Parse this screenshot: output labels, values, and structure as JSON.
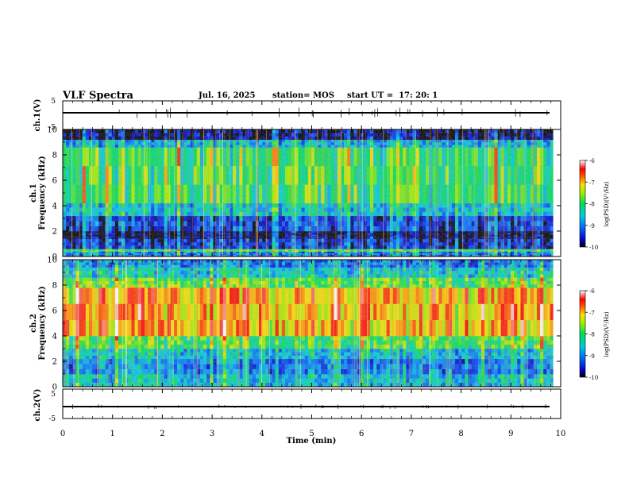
{
  "header": {
    "title": "VLF Spectra",
    "date": "Jul. 16, 2025",
    "station": "station= MOS",
    "start": "start UT =  17: 20: 1"
  },
  "chart_data": [
    {
      "type": "line",
      "name": "ch1-voltage",
      "ylabel": "ch.1(V)",
      "ylim": [
        -5,
        5
      ],
      "yticks": [
        "5",
        "-5"
      ],
      "trace_level": 0
    },
    {
      "type": "heatmap",
      "name": "ch1-spectrogram",
      "ylabel_top": "ch.1",
      "ylabel": "Frequency (kHz)",
      "ylim": [
        0,
        10
      ],
      "yticks": [
        "0",
        "2",
        "4",
        "6",
        "8",
        "10"
      ],
      "xlim_min": [
        0,
        9.85
      ],
      "color_range_log_psd": [
        -10,
        -6
      ],
      "colorbar_ticks": [
        "-6",
        "-7",
        "-8",
        "-9",
        "-10"
      ],
      "colorbar_label": "log(PSD)(V²/Hz)",
      "bands_khz": [
        {
          "from": 0,
          "to": 0.4,
          "level": -9.0
        },
        {
          "from": 0.4,
          "to": 0.6,
          "level": -8.0
        },
        {
          "from": 0.6,
          "to": 1.4,
          "level": -9.5
        },
        {
          "from": 1.4,
          "to": 1.6,
          "level": -9.9
        },
        {
          "from": 1.6,
          "to": 2.0,
          "level": -10.0
        },
        {
          "from": 2.0,
          "to": 3.2,
          "level": -9.4
        },
        {
          "from": 3.2,
          "to": 4.2,
          "level": -8.6
        },
        {
          "from": 4.2,
          "to": 8.6,
          "level": -8.0
        },
        {
          "from": 8.6,
          "to": 9.2,
          "level": -8.7
        },
        {
          "from": 9.2,
          "to": 10.0,
          "level": -9.9
        }
      ]
    },
    {
      "type": "heatmap",
      "name": "ch2-spectrogram",
      "ylabel_top": "ch.2",
      "ylabel": "Frequency (kHz)",
      "ylim": [
        0,
        10
      ],
      "yticks": [
        "0",
        "2",
        "4",
        "6",
        "8",
        "10"
      ],
      "xlim_min": [
        0,
        9.85
      ],
      "color_range_log_psd": [
        -10,
        -6
      ],
      "colorbar_ticks": [
        "-6",
        "-7",
        "-8",
        "-9",
        "-10"
      ],
      "colorbar_label": "log(PSD)(V²/Hz)",
      "bands_khz": [
        {
          "from": 0,
          "to": 1.0,
          "level": -8.6
        },
        {
          "from": 1.0,
          "to": 2.2,
          "level": -9.0
        },
        {
          "from": 2.2,
          "to": 3.0,
          "level": -8.6
        },
        {
          "from": 3.0,
          "to": 4.0,
          "level": -7.9
        },
        {
          "from": 4.0,
          "to": 7.8,
          "level": -7.0
        },
        {
          "from": 7.8,
          "to": 8.6,
          "level": -7.8
        },
        {
          "from": 8.6,
          "to": 9.4,
          "level": -8.5
        },
        {
          "from": 9.4,
          "to": 10.0,
          "level": -9.0
        }
      ]
    },
    {
      "type": "line",
      "name": "ch2-voltage",
      "ylabel": "ch.2(V)",
      "ylim": [
        -5,
        5
      ],
      "yticks": [
        "5",
        "-5"
      ],
      "trace_level": 0
    }
  ],
  "xaxis": {
    "label": "Time (min)",
    "xlim": [
      0,
      10
    ],
    "ticks": [
      "0",
      "1",
      "2",
      "3",
      "4",
      "5",
      "6",
      "7",
      "8",
      "9",
      "10"
    ]
  }
}
